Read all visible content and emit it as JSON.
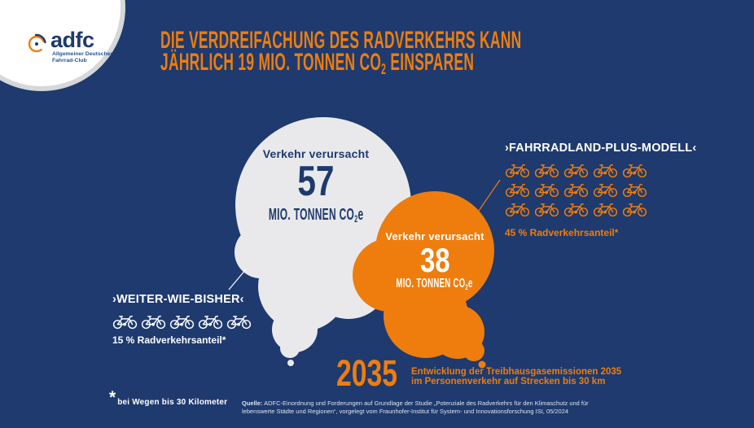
{
  "colors": {
    "background": "#1e3a6e",
    "orange": "#ee7d0e",
    "cloud_gray": "#e9e9ec",
    "navy_text": "#1d3a6c",
    "white": "#ffffff",
    "ring_gray": "#d6d7d9",
    "source_gray": "#dfe3ee"
  },
  "logo": {
    "brand": "adfc",
    "subtitle_line1": "Allgemeiner Deutscher",
    "subtitle_line2": "Fahrrad-Club"
  },
  "title": {
    "line1": "DIE VERDREIFACHUNG DES RADVERKEHRS KANN",
    "line2_pre": "JÄHRLICH 19 MIO. TONNEN CO",
    "line2_sub": "2",
    "line2_post": " EINSPAREN"
  },
  "bubble_business_as_usual": {
    "label": "Verkehr verursacht",
    "value": "57",
    "unit_pre": "MIO. TONNEN CO",
    "unit_sub": "2",
    "unit_post": "e"
  },
  "bubble_plus_model": {
    "label": "Verkehr verursacht",
    "value": "38",
    "unit_pre": "MIO. TONNEN CO",
    "unit_sub": "2",
    "unit_post": "e"
  },
  "scenario_left": {
    "title": "›WEITER-WIE-BISHER‹",
    "bike_count": 5,
    "share": "15 % Radverkehrsanteil*"
  },
  "scenario_right": {
    "title": "›FAHRRADLAND-PLUS-MODELL‹",
    "bike_count": 15,
    "share": "45 % Radverkehrsanteil*"
  },
  "timeline": {
    "year": "2035",
    "caption_line1": "Entwicklung der Treibhausgasemissionen 2035",
    "caption_line2": "im Personenverkehr auf Strecken bis 30 km"
  },
  "footnote": {
    "mark": "*",
    "text": "bei Wegen bis 30 Kilometer"
  },
  "source": {
    "label": "Quelle:",
    "line1": " ADFC-Einordnung und Forderungen auf Grundlage der Studie „Potenziale des Radverkehrs für den Klimaschutz und für",
    "line2": "lebenswerte Städte und Regionen“, vorgelegt vom Fraunhofer-Institut für System- und Innovationsforschung ISI, 05/2024"
  },
  "chart_data": {
    "type": "bubble",
    "title": "Die Verdreifachung des Radverkehrs kann jährlich 19 Mio. Tonnen CO2 einsparen",
    "unit": "Mio. Tonnen CO2e",
    "year": "2035",
    "scope": "Entwicklung der Treibhausgasemissionen 2035 im Personenverkehr auf Strecken bis 30 km",
    "categories": [
      "Weiter-wie-bisher",
      "Fahrradland-Plus-Modell"
    ],
    "series": [
      {
        "name": "Verkehr verursacht (Mio. Tonnen CO2e)",
        "values": [
          57,
          38
        ]
      },
      {
        "name": "Radverkehrsanteil (%)",
        "values": [
          15,
          45
        ]
      }
    ],
    "savings_mio_tonnen_co2": 19,
    "pictogram": "bicycle",
    "pictogram_counts": [
      5,
      15
    ],
    "legend_position": "none",
    "notes": [
      "bei Wegen bis 30 Kilometer"
    ]
  }
}
